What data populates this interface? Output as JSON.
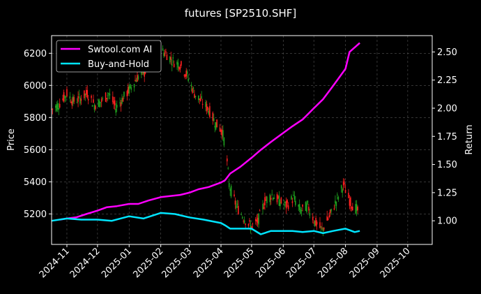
{
  "chart_data": {
    "type": "line",
    "title": "futures [SP2510.SHF]",
    "xlabel": "",
    "ylabel": "Price",
    "ylabel_right": "Return",
    "x_ticks": [
      "2024-11",
      "2024-12",
      "2025-01",
      "2025-02",
      "2025-03",
      "2025-04",
      "2025-05",
      "2025-06",
      "2025-07",
      "2025-08",
      "2025-09",
      "2025-10"
    ],
    "x_range": [
      "2024-10-17",
      "2025-10-25"
    ],
    "ylim_left": [
      5010,
      6310
    ],
    "yticks_left": [
      5200,
      5400,
      5600,
      5800,
      6000,
      6200
    ],
    "ylim_right": [
      0.79,
      2.645
    ],
    "yticks_right": [
      "1.00",
      "1.25",
      "1.50",
      "1.75",
      "2.00",
      "2.25",
      "2.50"
    ],
    "grid": true,
    "legend_position": "top-left",
    "candle_colors": {
      "up": "#ff2020",
      "down": "#1fa01f"
    },
    "series": [
      {
        "name": "Swtool.com AI",
        "color": "#ff00ff",
        "points": [
          [
            "2024-10-25",
            1.01
          ],
          [
            "2024-11-01",
            1.02
          ],
          [
            "2024-11-10",
            1.03
          ],
          [
            "2024-11-20",
            1.06
          ],
          [
            "2024-12-01",
            1.09
          ],
          [
            "2024-12-10",
            1.12
          ],
          [
            "2024-12-20",
            1.13
          ],
          [
            "2025-01-01",
            1.15
          ],
          [
            "2025-01-10",
            1.15
          ],
          [
            "2025-01-20",
            1.18
          ],
          [
            "2025-02-01",
            1.21
          ],
          [
            "2025-02-10",
            1.22
          ],
          [
            "2025-02-20",
            1.23
          ],
          [
            "2025-03-01",
            1.25
          ],
          [
            "2025-03-10",
            1.28
          ],
          [
            "2025-03-20",
            1.3
          ],
          [
            "2025-04-01",
            1.34
          ],
          [
            "2025-04-05",
            1.36
          ],
          [
            "2025-04-10",
            1.42
          ],
          [
            "2025-04-20",
            1.48
          ],
          [
            "2025-05-01",
            1.56
          ],
          [
            "2025-05-10",
            1.63
          ],
          [
            "2025-05-20",
            1.7
          ],
          [
            "2025-06-01",
            1.78
          ],
          [
            "2025-06-10",
            1.84
          ],
          [
            "2025-06-20",
            1.9
          ],
          [
            "2025-07-01",
            2.0
          ],
          [
            "2025-07-10",
            2.08
          ],
          [
            "2025-07-20",
            2.2
          ],
          [
            "2025-08-01",
            2.35
          ],
          [
            "2025-08-05",
            2.5
          ],
          [
            "2025-08-15",
            2.58
          ]
        ]
      },
      {
        "name": "Buy-and-Hold",
        "color": "#00e5ff",
        "points": [
          [
            "2024-10-17",
            1.0
          ],
          [
            "2024-11-01",
            1.02
          ],
          [
            "2024-11-15",
            1.01
          ],
          [
            "2024-12-01",
            1.01
          ],
          [
            "2024-12-15",
            1.0
          ],
          [
            "2025-01-01",
            1.04
          ],
          [
            "2025-01-15",
            1.02
          ],
          [
            "2025-02-01",
            1.07
          ],
          [
            "2025-02-15",
            1.06
          ],
          [
            "2025-03-01",
            1.03
          ],
          [
            "2025-03-15",
            1.01
          ],
          [
            "2025-04-01",
            0.98
          ],
          [
            "2025-04-05",
            0.96
          ],
          [
            "2025-04-10",
            0.93
          ],
          [
            "2025-05-01",
            0.93
          ],
          [
            "2025-05-10",
            0.88
          ],
          [
            "2025-05-20",
            0.91
          ],
          [
            "2025-06-10",
            0.91
          ],
          [
            "2025-06-20",
            0.9
          ],
          [
            "2025-07-01",
            0.91
          ],
          [
            "2025-07-10",
            0.89
          ],
          [
            "2025-07-20",
            0.91
          ],
          [
            "2025-08-01",
            0.93
          ],
          [
            "2025-08-10",
            0.9
          ],
          [
            "2025-08-15",
            0.91
          ]
        ]
      }
    ],
    "price_series": {
      "name": "SP2510.SHF",
      "points": [
        [
          "2024-10-17",
          5850
        ],
        [
          "2024-10-24",
          5880
        ],
        [
          "2024-11-01",
          5950
        ],
        [
          "2024-11-07",
          5900
        ],
        [
          "2024-11-14",
          5920
        ],
        [
          "2024-11-21",
          5950
        ],
        [
          "2024-11-28",
          5880
        ],
        [
          "2024-12-05",
          5900
        ],
        [
          "2024-12-12",
          5950
        ],
        [
          "2024-12-19",
          5860
        ],
        [
          "2024-12-26",
          5920
        ],
        [
          "2025-01-02",
          5980
        ],
        [
          "2025-01-09",
          6050
        ],
        [
          "2025-01-16",
          6080
        ],
        [
          "2025-01-23",
          6150
        ],
        [
          "2025-01-30",
          6220
        ],
        [
          "2025-02-06",
          6200
        ],
        [
          "2025-02-13",
          6150
        ],
        [
          "2025-02-20",
          6130
        ],
        [
          "2025-02-27",
          6060
        ],
        [
          "2025-03-06",
          5950
        ],
        [
          "2025-03-13",
          5900
        ],
        [
          "2025-03-20",
          5850
        ],
        [
          "2025-03-27",
          5760
        ],
        [
          "2025-04-02",
          5720
        ],
        [
          "2025-04-06",
          5600
        ],
        [
          "2025-04-09",
          5380
        ],
        [
          "2025-04-16",
          5250
        ],
        [
          "2025-04-23",
          5180
        ],
        [
          "2025-04-30",
          5120
        ],
        [
          "2025-05-07",
          5150
        ],
        [
          "2025-05-14",
          5280
        ],
        [
          "2025-05-21",
          5320
        ],
        [
          "2025-05-28",
          5280
        ],
        [
          "2025-06-04",
          5250
        ],
        [
          "2025-06-11",
          5300
        ],
        [
          "2025-06-18",
          5220
        ],
        [
          "2025-06-25",
          5250
        ],
        [
          "2025-07-02",
          5150
        ],
        [
          "2025-07-09",
          5100
        ],
        [
          "2025-07-16",
          5180
        ],
        [
          "2025-07-23",
          5280
        ],
        [
          "2025-07-30",
          5380
        ],
        [
          "2025-08-06",
          5270
        ],
        [
          "2025-08-13",
          5220
        ]
      ]
    }
  }
}
